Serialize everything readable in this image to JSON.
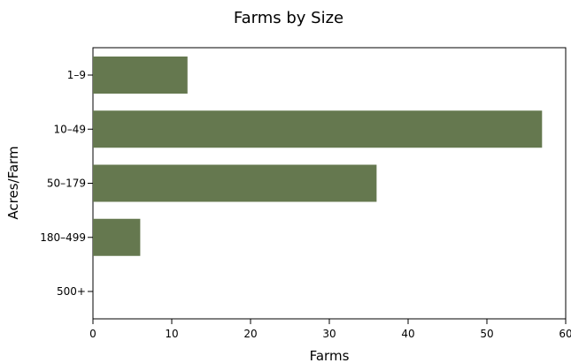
{
  "chart_data": {
    "type": "bar",
    "orientation": "horizontal",
    "title": "Farms by Size",
    "xlabel": "Farms",
    "ylabel": "Acres/Farm",
    "categories": [
      "1–9",
      "10–49",
      "50–179",
      "180–499",
      "500+"
    ],
    "values": [
      12,
      57,
      36,
      6,
      0
    ],
    "xlim": [
      0,
      60
    ],
    "xticks": [
      0,
      10,
      20,
      30,
      40,
      50,
      60
    ],
    "grid": false,
    "legend": "none",
    "bar_color": "#65784f"
  }
}
